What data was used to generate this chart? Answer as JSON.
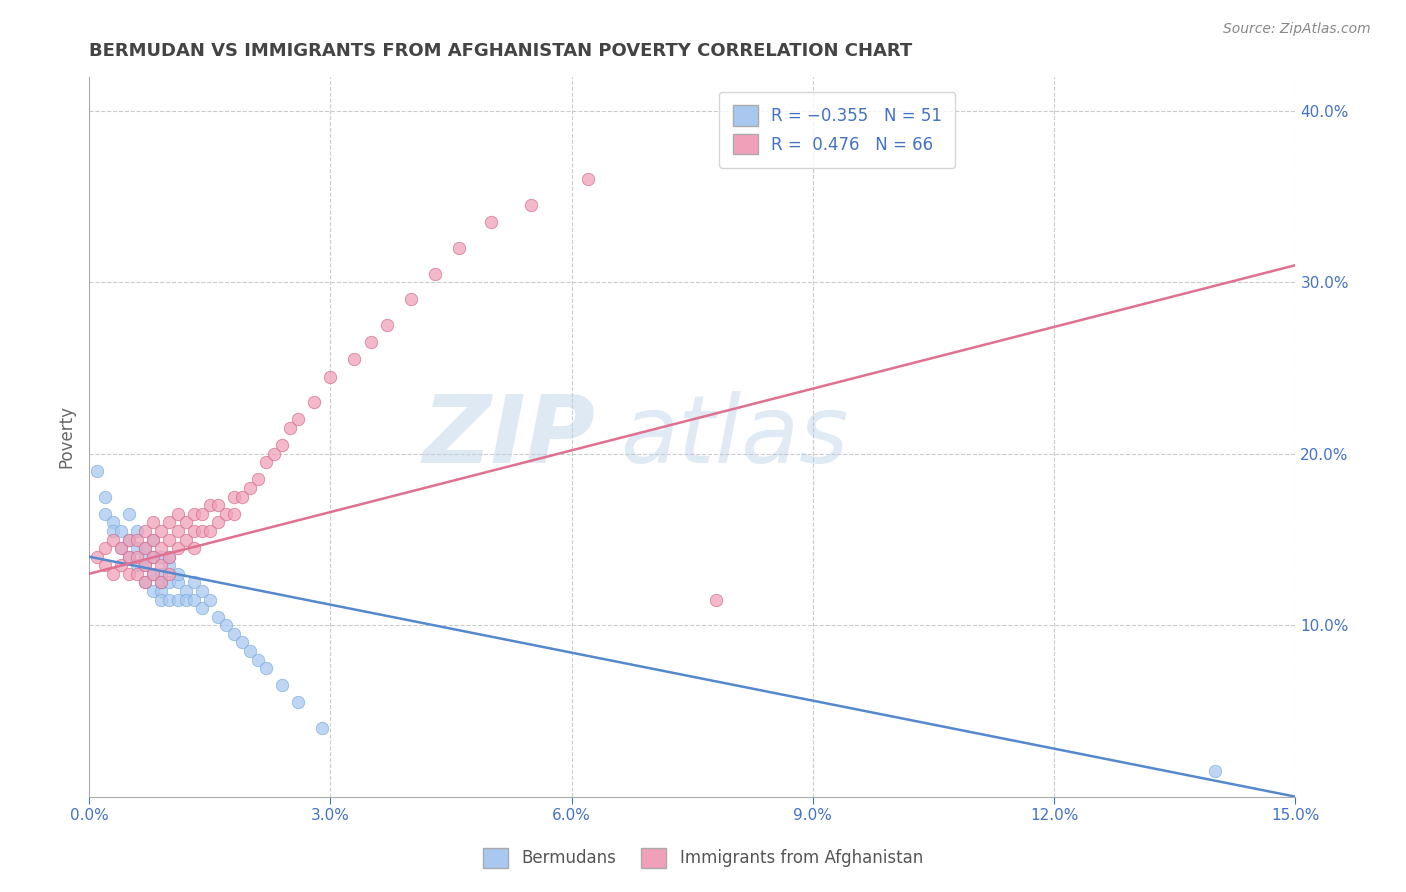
{
  "title": "BERMUDAN VS IMMIGRANTS FROM AFGHANISTAN POVERTY CORRELATION CHART",
  "source": "Source: ZipAtlas.com",
  "ylabel": "Poverty",
  "xlim": [
    0.0,
    0.15
  ],
  "ylim": [
    0.0,
    0.42
  ],
  "xticks": [
    0.0,
    0.03,
    0.06,
    0.09,
    0.12,
    0.15
  ],
  "xticklabels": [
    "0.0%",
    "3.0%",
    "6.0%",
    "9.0%",
    "12.0%",
    "15.0%"
  ],
  "yticks_right": [
    0.1,
    0.2,
    0.3,
    0.4
  ],
  "ytick_labels_right": [
    "10.0%",
    "20.0%",
    "30.0%",
    "40.0%"
  ],
  "bermudan_color": "#a8c8f0",
  "bermudan_edge": "#7aaad8",
  "bermudan_line": "#5588cc",
  "afghanistan_color": "#f0a0b8",
  "afghanistan_edge": "#d06888",
  "afghanistan_line": "#e07090",
  "background_color": "#ffffff",
  "grid_color": "#cccccc",
  "title_color": "#444444",
  "axis_color": "#4472c4",
  "watermark_color": "#ccddf0",
  "legend_names": [
    "Bermudans",
    "Immigrants from Afghanistan"
  ],
  "bermudan_x": [
    0.001,
    0.002,
    0.002,
    0.003,
    0.003,
    0.004,
    0.004,
    0.005,
    0.005,
    0.005,
    0.006,
    0.006,
    0.006,
    0.007,
    0.007,
    0.007,
    0.007,
    0.008,
    0.008,
    0.008,
    0.008,
    0.009,
    0.009,
    0.009,
    0.009,
    0.009,
    0.01,
    0.01,
    0.01,
    0.01,
    0.011,
    0.011,
    0.011,
    0.012,
    0.012,
    0.013,
    0.013,
    0.014,
    0.014,
    0.015,
    0.016,
    0.017,
    0.018,
    0.019,
    0.02,
    0.021,
    0.022,
    0.024,
    0.026,
    0.029,
    0.14
  ],
  "bermudan_y": [
    0.19,
    0.175,
    0.165,
    0.16,
    0.155,
    0.155,
    0.145,
    0.14,
    0.15,
    0.165,
    0.135,
    0.145,
    0.155,
    0.14,
    0.145,
    0.135,
    0.125,
    0.12,
    0.13,
    0.14,
    0.15,
    0.12,
    0.13,
    0.14,
    0.125,
    0.115,
    0.115,
    0.125,
    0.135,
    0.14,
    0.115,
    0.125,
    0.13,
    0.12,
    0.115,
    0.115,
    0.125,
    0.11,
    0.12,
    0.115,
    0.105,
    0.1,
    0.095,
    0.09,
    0.085,
    0.08,
    0.075,
    0.065,
    0.055,
    0.04,
    0.015
  ],
  "afghanistan_x": [
    0.001,
    0.002,
    0.002,
    0.003,
    0.003,
    0.004,
    0.004,
    0.005,
    0.005,
    0.005,
    0.006,
    0.006,
    0.006,
    0.007,
    0.007,
    0.007,
    0.007,
    0.008,
    0.008,
    0.008,
    0.008,
    0.009,
    0.009,
    0.009,
    0.009,
    0.01,
    0.01,
    0.01,
    0.01,
    0.011,
    0.011,
    0.011,
    0.012,
    0.012,
    0.013,
    0.013,
    0.013,
    0.014,
    0.014,
    0.015,
    0.015,
    0.016,
    0.016,
    0.017,
    0.018,
    0.018,
    0.019,
    0.02,
    0.021,
    0.022,
    0.023,
    0.024,
    0.025,
    0.026,
    0.028,
    0.03,
    0.033,
    0.035,
    0.037,
    0.04,
    0.043,
    0.046,
    0.05,
    0.055,
    0.062,
    0.078
  ],
  "afghanistan_y": [
    0.14,
    0.145,
    0.135,
    0.15,
    0.13,
    0.145,
    0.135,
    0.13,
    0.14,
    0.15,
    0.13,
    0.14,
    0.15,
    0.135,
    0.145,
    0.155,
    0.125,
    0.13,
    0.14,
    0.15,
    0.16,
    0.135,
    0.145,
    0.155,
    0.125,
    0.14,
    0.15,
    0.16,
    0.13,
    0.145,
    0.155,
    0.165,
    0.15,
    0.16,
    0.145,
    0.155,
    0.165,
    0.155,
    0.165,
    0.155,
    0.17,
    0.16,
    0.17,
    0.165,
    0.175,
    0.165,
    0.175,
    0.18,
    0.185,
    0.195,
    0.2,
    0.205,
    0.215,
    0.22,
    0.23,
    0.245,
    0.255,
    0.265,
    0.275,
    0.29,
    0.305,
    0.32,
    0.335,
    0.345,
    0.36,
    0.115
  ],
  "blue_line_x": [
    0.0,
    0.15
  ],
  "blue_line_y": [
    0.14,
    0.0
  ],
  "pink_line_x": [
    0.0,
    0.15
  ],
  "pink_line_y": [
    0.13,
    0.31
  ]
}
